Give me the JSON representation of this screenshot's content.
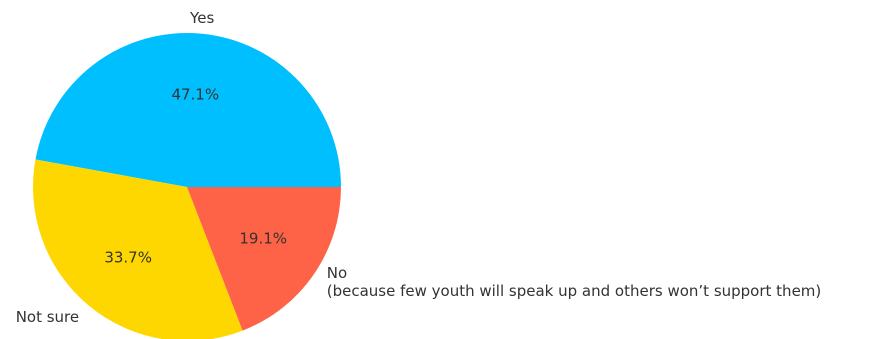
{
  "chart_data": {
    "type": "pie",
    "categories": [
      "Yes",
      "Not sure",
      "No\n(because few youth will speak up and others won’t support them)"
    ],
    "values": [
      47.1,
      33.7,
      19.1
    ],
    "percent_labels": [
      "47.1%",
      "33.7%",
      "19.1%"
    ],
    "colors": [
      "#00BFFF",
      "#FFD700",
      "#FF6347"
    ],
    "start_angle_deg": 0,
    "direction": "counterclockwise",
    "legend": "none"
  }
}
